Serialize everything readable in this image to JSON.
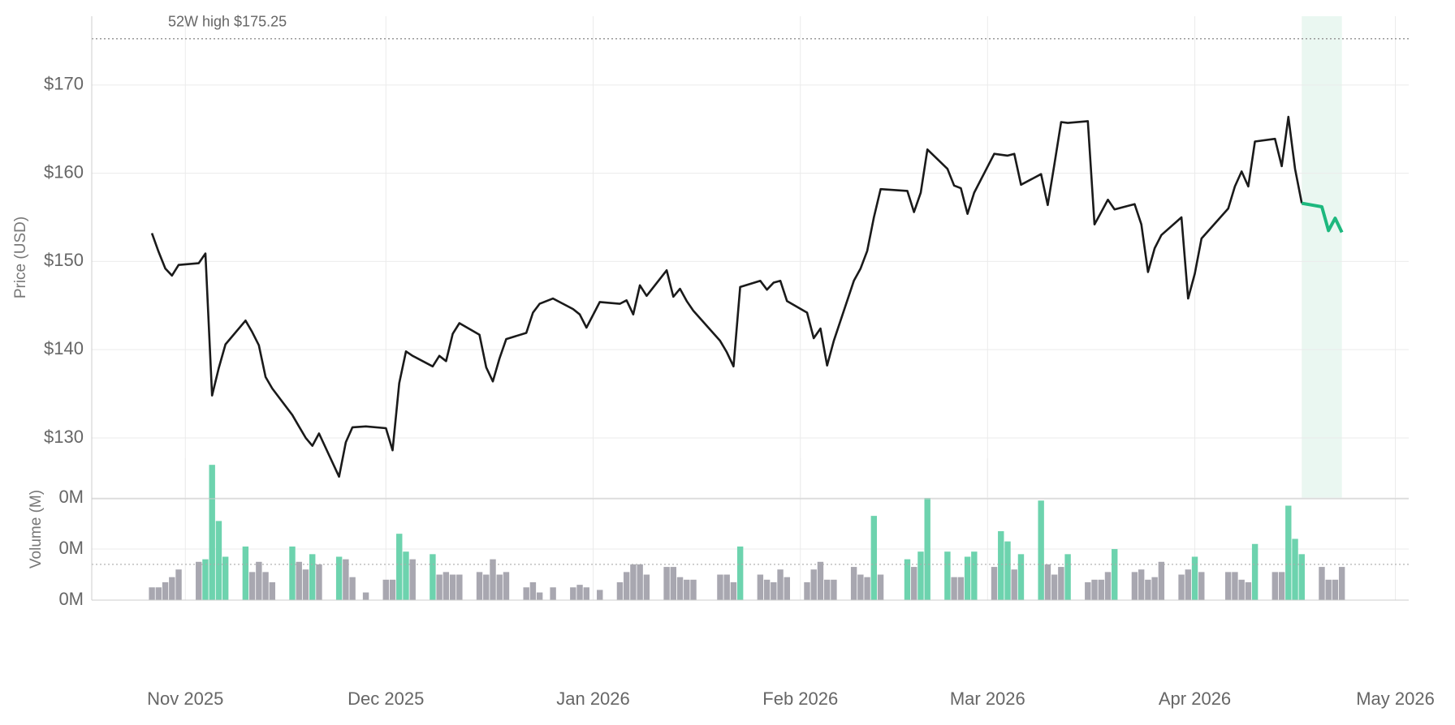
{
  "chart_data": [
    {
      "type": "line",
      "y_label": "Price (USD)",
      "x": [
        "2025-10-27",
        "2025-10-28",
        "2025-10-29",
        "2025-10-30",
        "2025-10-31",
        "2025-11-03",
        "2025-11-04",
        "2025-11-05",
        "2025-11-06",
        "2025-11-07",
        "2025-11-10",
        "2025-11-11",
        "2025-11-12",
        "2025-11-13",
        "2025-11-14",
        "2025-11-17",
        "2025-11-18",
        "2025-11-19",
        "2025-11-20",
        "2025-11-21",
        "2025-11-24",
        "2025-11-25",
        "2025-11-26",
        "2025-11-28",
        "2025-12-01",
        "2025-12-02",
        "2025-12-03",
        "2025-12-04",
        "2025-12-05",
        "2025-12-08",
        "2025-12-09",
        "2025-12-10",
        "2025-12-11",
        "2025-12-12",
        "2025-12-15",
        "2025-12-16",
        "2025-12-17",
        "2025-12-18",
        "2025-12-19",
        "2025-12-22",
        "2025-12-23",
        "2025-12-24",
        "2025-12-26",
        "2025-12-29",
        "2025-12-30",
        "2025-12-31",
        "2026-01-02",
        "2026-01-05",
        "2026-01-06",
        "2026-01-07",
        "2026-01-08",
        "2026-01-09",
        "2026-01-12",
        "2026-01-13",
        "2026-01-14",
        "2026-01-15",
        "2026-01-16",
        "2026-01-20",
        "2026-01-21",
        "2026-01-22",
        "2026-01-23",
        "2026-01-26",
        "2026-01-27",
        "2026-01-28",
        "2026-01-29",
        "2026-01-30",
        "2026-02-02",
        "2026-02-03",
        "2026-02-04",
        "2026-02-05",
        "2026-02-06",
        "2026-02-09",
        "2026-02-10",
        "2026-02-11",
        "2026-02-12",
        "2026-02-13",
        "2026-02-17",
        "2026-02-18",
        "2026-02-19",
        "2026-02-20",
        "2026-02-23",
        "2026-02-24",
        "2026-02-25",
        "2026-02-26",
        "2026-02-27",
        "2026-03-02",
        "2026-03-03",
        "2026-03-04",
        "2026-03-05",
        "2026-03-06",
        "2026-03-09",
        "2026-03-10",
        "2026-03-11",
        "2026-03-12",
        "2026-03-13",
        "2026-03-16",
        "2026-03-17",
        "2026-03-18",
        "2026-03-19",
        "2026-03-20",
        "2026-03-23",
        "2026-03-24",
        "2026-03-25",
        "2026-03-26",
        "2026-03-27",
        "2026-03-30",
        "2026-03-31",
        "2026-04-01",
        "2026-04-02",
        "2026-04-06",
        "2026-04-07",
        "2026-04-08",
        "2026-04-09",
        "2026-04-10",
        "2026-04-13",
        "2026-04-14",
        "2026-04-15",
        "2026-04-16",
        "2026-04-17",
        "2026-04-20",
        "2026-04-21",
        "2026-04-22",
        "2026-04-23"
      ],
      "series": [
        {
          "color": "#1a1a1a",
          "values": [
            153.2,
            151.1,
            149.2,
            148.4,
            149.6,
            149.8,
            150.9,
            134.8,
            137.9,
            140.6,
            143.3,
            142.0,
            140.5,
            136.9,
            135.6,
            132.6,
            131.3,
            130.0,
            129.1,
            130.5,
            125.6,
            129.5,
            131.2,
            131.3,
            131.1,
            128.6,
            136.2,
            139.8,
            139.3,
            138.1,
            139.3,
            138.7,
            141.8,
            143.0,
            141.7,
            138.0,
            136.4,
            139.0,
            141.2,
            141.9,
            144.2,
            145.2,
            145.8,
            144.6,
            144.0,
            142.5,
            145.4,
            145.2,
            145.6,
            144.0,
            147.3,
            146.1,
            149.0,
            146.0,
            146.9,
            145.5,
            144.4,
            141.0,
            139.7,
            138.1,
            147.1,
            147.8,
            146.8,
            147.6,
            147.8,
            145.5,
            144.2,
            141.3,
            142.4,
            138.2,
            141.0,
            147.8,
            149.2,
            151.2,
            155.0,
            158.2,
            158.0,
            155.6,
            157.8,
            162.7,
            160.5,
            158.6,
            158.3,
            155.4,
            157.8,
            162.2,
            162.1,
            162.0,
            162.2,
            158.7,
            159.9,
            156.4,
            161.0,
            165.8,
            165.7,
            165.9,
            154.2,
            155.6,
            157.0,
            155.9,
            156.5,
            154.2,
            148.8,
            151.5,
            153.0,
            155.0,
            145.8,
            148.6,
            152.6,
            156.0,
            158.5,
            160.2,
            158.5,
            163.6,
            163.9,
            160.8,
            166.4,
            160.5,
            156.6,
            null,
            null,
            null,
            null
          ]
        },
        {
          "color": "#1db87e",
          "x": [
            "2026-04-17",
            "2026-04-20",
            "2026-04-21",
            "2026-04-22",
            "2026-04-23"
          ],
          "values": [
            156.6,
            156.2,
            153.5,
            154.9,
            153.3
          ]
        }
      ],
      "xlim": [
        "2025-10-18",
        "2026-05-03"
      ],
      "ylim": [
        123.1,
        177.8
      ],
      "yticks": [
        {
          "value": 130,
          "label": "$130"
        },
        {
          "value": 140,
          "label": "$140"
        },
        {
          "value": 150,
          "label": "$150"
        },
        {
          "value": 160,
          "label": "$160"
        },
        {
          "value": 170,
          "label": "$170"
        }
      ],
      "reference_line": {
        "value": 175.25,
        "label": "52W high $175.25"
      },
      "highlight_range": {
        "x": [
          "2026-04-17",
          "2026-04-23"
        ],
        "color": "#eaf7f1"
      },
      "grid": true
    },
    {
      "type": "bar",
      "y_label": "Volume (M)",
      "values": [
        0.05,
        0.05,
        0.07,
        0.09,
        0.12,
        0.15,
        0.16,
        0.53,
        0.31,
        0.17,
        0.21,
        0.11,
        0.15,
        0.11,
        0.07,
        0.21,
        0.15,
        0.12,
        0.18,
        0.14,
        0.17,
        0.16,
        0.09,
        0.03,
        0.08,
        0.08,
        0.26,
        0.19,
        0.16,
        0.18,
        0.1,
        0.11,
        0.1,
        0.1,
        0.11,
        0.1,
        0.16,
        0.1,
        0.11,
        0.05,
        0.07,
        0.03,
        0.05,
        0.05,
        0.06,
        0.05,
        0.04,
        0.07,
        0.11,
        0.14,
        0.14,
        0.1,
        0.13,
        0.13,
        0.09,
        0.08,
        0.08,
        0.1,
        0.1,
        0.07,
        0.21,
        0.1,
        0.08,
        0.07,
        0.12,
        0.09,
        0.07,
        0.12,
        0.15,
        0.08,
        0.08,
        0.13,
        0.1,
        0.09,
        0.33,
        0.1,
        0.16,
        0.13,
        0.19,
        0.4,
        0.19,
        0.09,
        0.09,
        0.17,
        0.19,
        0.13,
        0.27,
        0.23,
        0.12,
        0.18,
        0.39,
        0.14,
        0.1,
        0.13,
        0.18,
        0.07,
        0.08,
        0.08,
        0.11,
        0.2,
        0.11,
        0.12,
        0.08,
        0.09,
        0.15,
        0.1,
        0.12,
        0.17,
        0.11,
        0.11,
        0.11,
        0.08,
        0.07,
        0.22,
        0.11,
        0.11,
        0.37,
        0.24,
        0.18,
        0.13,
        0.08,
        0.08,
        0.13
      ],
      "colors": [
        "#a8a7b0",
        "#a8a7b0",
        "#a8a7b0",
        "#a8a7b0",
        "#a8a7b0",
        "#a8a7b0",
        "#6dd3ae",
        "#6dd3ae",
        "#6dd3ae",
        "#6dd3ae",
        "#6dd3ae",
        "#a8a7b0",
        "#a8a7b0",
        "#a8a7b0",
        "#a8a7b0",
        "#6dd3ae",
        "#a8a7b0",
        "#a8a7b0",
        "#6dd3ae",
        "#a8a7b0",
        "#6dd3ae",
        "#a8a7b0",
        "#a8a7b0",
        "#a8a7b0",
        "#a8a7b0",
        "#a8a7b0",
        "#6dd3ae",
        "#6dd3ae",
        "#a8a7b0",
        "#6dd3ae",
        "#a8a7b0",
        "#a8a7b0",
        "#a8a7b0",
        "#a8a7b0",
        "#a8a7b0",
        "#a8a7b0",
        "#a8a7b0",
        "#a8a7b0",
        "#a8a7b0",
        "#a8a7b0",
        "#a8a7b0",
        "#a8a7b0",
        "#a8a7b0",
        "#a8a7b0",
        "#a8a7b0",
        "#a8a7b0",
        "#a8a7b0",
        "#a8a7b0",
        "#a8a7b0",
        "#a8a7b0",
        "#a8a7b0",
        "#a8a7b0",
        "#a8a7b0",
        "#a8a7b0",
        "#a8a7b0",
        "#a8a7b0",
        "#a8a7b0",
        "#a8a7b0",
        "#a8a7b0",
        "#a8a7b0",
        "#6dd3ae",
        "#a8a7b0",
        "#a8a7b0",
        "#a8a7b0",
        "#a8a7b0",
        "#a8a7b0",
        "#a8a7b0",
        "#a8a7b0",
        "#a8a7b0",
        "#a8a7b0",
        "#a8a7b0",
        "#a8a7b0",
        "#a8a7b0",
        "#a8a7b0",
        "#6dd3ae",
        "#a8a7b0",
        "#6dd3ae",
        "#a8a7b0",
        "#6dd3ae",
        "#6dd3ae",
        "#6dd3ae",
        "#a8a7b0",
        "#a8a7b0",
        "#6dd3ae",
        "#6dd3ae",
        "#a8a7b0",
        "#6dd3ae",
        "#6dd3ae",
        "#a8a7b0",
        "#6dd3ae",
        "#6dd3ae",
        "#a8a7b0",
        "#a8a7b0",
        "#a8a7b0",
        "#6dd3ae",
        "#a8a7b0",
        "#a8a7b0",
        "#a8a7b0",
        "#a8a7b0",
        "#6dd3ae",
        "#a8a7b0",
        "#a8a7b0",
        "#a8a7b0",
        "#a8a7b0",
        "#a8a7b0",
        "#a8a7b0",
        "#a8a7b0",
        "#6dd3ae",
        "#a8a7b0",
        "#a8a7b0",
        "#a8a7b0",
        "#a8a7b0",
        "#a8a7b0",
        "#6dd3ae",
        "#a8a7b0",
        "#a8a7b0",
        "#6dd3ae",
        "#6dd3ae",
        "#6dd3ae",
        "#a8a7b0",
        "#a8a7b0",
        "#a8a7b0",
        "#a8a7b0"
      ],
      "ylim": [
        0,
        0.556
      ],
      "yticks": [
        {
          "value": 0,
          "label": "0M"
        },
        {
          "value": 0.2,
          "label": "0M"
        },
        {
          "value": 0.4,
          "label": "0M"
        }
      ],
      "reference_line": 0.14,
      "xticks": [
        {
          "value": "2025-11-01",
          "label": "Nov 2025"
        },
        {
          "value": "2025-12-01",
          "label": "Dec 2025"
        },
        {
          "value": "2026-01-01",
          "label": "Jan 2026"
        },
        {
          "value": "2026-02-01",
          "label": "Feb 2026"
        },
        {
          "value": "2026-03-01",
          "label": "Mar 2026"
        },
        {
          "value": "2026-04-01",
          "label": "Apr 2026"
        },
        {
          "value": "2026-05-01",
          "label": "May 2026"
        }
      ],
      "grid": true
    }
  ]
}
